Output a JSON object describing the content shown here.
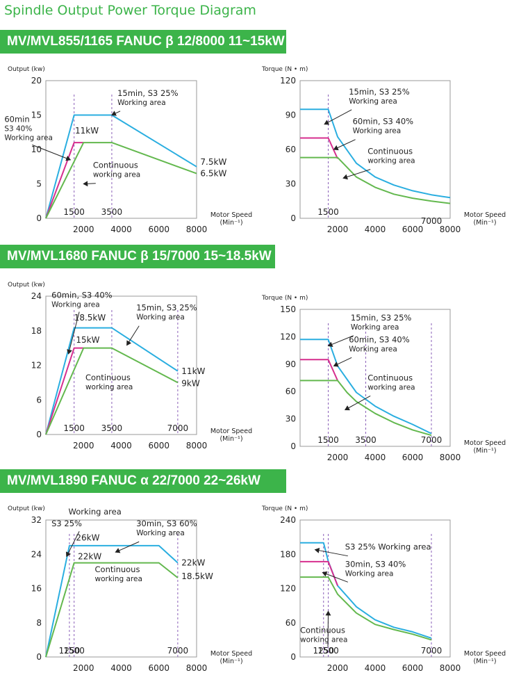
{
  "page_title": "Spindle Output Power Torque Diagram",
  "sections": [
    {
      "banner": "MV/MVL855/1165  FANUC β 12/8000  11~15kW"
    },
    {
      "banner": "MV/MVL1680  FANUC β 15/7000  15~18.5kW"
    },
    {
      "banner": "MV/MVL1890  FANUC α 22/7000  22~26kW"
    }
  ],
  "colors": {
    "s3_25": "#2aaee0",
    "s3_40": "#d62e8e",
    "continuous": "#63b84e",
    "marker": "#8a5fb8",
    "banner": "#3cb44a"
  },
  "chart_data": [
    {
      "type": "line",
      "kind": "output",
      "ylabel": "Output (kw)",
      "xlabel": "Motor Speed",
      "xunit": "(Min⁻¹)",
      "xlim": [
        0,
        8000
      ],
      "ylim": [
        0,
        20
      ],
      "xticks": [
        "2000",
        "4000",
        "6000",
        "8000"
      ],
      "yticks": [
        "0",
        "5",
        "10",
        "15",
        "20"
      ],
      "markers": [
        {
          "x": 1500,
          "label": "1500"
        },
        {
          "x": 3500,
          "label": "3500"
        }
      ],
      "series": [
        {
          "key": "s3_25",
          "x": [
            0,
            1500,
            3500,
            8000
          ],
          "y": [
            0,
            15,
            15,
            7.5
          ]
        },
        {
          "key": "s3_40",
          "x": [
            0,
            1500,
            2000
          ],
          "y": [
            0,
            11,
            11
          ]
        },
        {
          "key": "continuous",
          "x": [
            0,
            2000,
            3500,
            8000
          ],
          "y": [
            0,
            11,
            11,
            6.5
          ]
        }
      ],
      "annotations": [
        {
          "lines": [
            "15min, S3 25%",
            "Working area"
          ],
          "x": 3800,
          "y": 17.8,
          "arrow": [
            3500,
            15
          ]
        },
        {
          "lines": [
            "60min",
            "S3 40%",
            "Working area"
          ],
          "x": -2200,
          "y": 14,
          "arrow": [
            1300,
            8.5
          ]
        },
        {
          "lines": [
            "11kW"
          ],
          "x": 1550,
          "y": 12.3
        },
        {
          "lines": [
            "Continuous",
            "working area"
          ],
          "x": 2500,
          "y": 7.3,
          "arrow": [
            2000,
            5
          ]
        },
        {
          "lines": [
            "7.5kW"
          ],
          "x": 8200,
          "y": 7.8
        },
        {
          "lines": [
            "6.5kW"
          ],
          "x": 8200,
          "y": 6.1
        }
      ]
    },
    {
      "type": "line",
      "kind": "torque",
      "ylabel": "Torque (N • m)",
      "xlabel": "Motor Speed",
      "xunit": "(Min⁻¹)",
      "xlim": [
        0,
        8000
      ],
      "ylim": [
        0,
        120
      ],
      "xticks": [
        "2000",
        "4000",
        "6000",
        "8000"
      ],
      "yticks": [
        "0",
        "30",
        "60",
        "90",
        "120"
      ],
      "markers": [
        {
          "x": 1500,
          "label": "1500"
        }
      ],
      "extra_labels": [
        {
          "text": "7000",
          "x": 7000,
          "y": -6
        }
      ],
      "series": [
        {
          "key": "s3_25",
          "x": [
            0,
            1500,
            2000,
            3000,
            4000,
            5000,
            6000,
            7000,
            8000
          ],
          "y": [
            95,
            95,
            71,
            48,
            36,
            29,
            24,
            20.5,
            18
          ]
        },
        {
          "key": "s3_40",
          "x": [
            0,
            1500,
            2000
          ],
          "y": [
            70,
            70,
            52
          ]
        },
        {
          "key": "continuous",
          "x": [
            0,
            2000,
            3000,
            4000,
            5000,
            6000,
            7000,
            8000
          ],
          "y": [
            53,
            53,
            36,
            27,
            21,
            17.5,
            15,
            13
          ]
        }
      ],
      "annotations": [
        {
          "lines": [
            "15min, S3 25%",
            "Working area"
          ],
          "x": 2600,
          "y": 108,
          "arrow": [
            1300,
            82
          ]
        },
        {
          "lines": [
            "60min, S3 40%",
            "Working area"
          ],
          "x": 2800,
          "y": 82,
          "arrow": [
            1800,
            60
          ]
        },
        {
          "lines": [
            "Continuous",
            "working area"
          ],
          "x": 3600,
          "y": 56,
          "arrow": [
            2300,
            35
          ]
        }
      ]
    },
    {
      "type": "line",
      "kind": "output",
      "ylabel": "Output (kw)",
      "xlabel": "Motor Speed",
      "xunit": "(Min⁻¹)",
      "xlim": [
        0,
        8000
      ],
      "ylim": [
        0,
        24
      ],
      "xticks": [
        "2000",
        "4000",
        "6000",
        "8000"
      ],
      "yticks": [
        "0",
        "6",
        "12",
        "18",
        "24"
      ],
      "markers": [
        {
          "x": 1500,
          "label": "1500"
        },
        {
          "x": 3500,
          "label": "3500"
        },
        {
          "x": 7000,
          "label": "7000"
        }
      ],
      "series": [
        {
          "key": "s3_25",
          "x": [
            0,
            1500,
            3500,
            7000
          ],
          "y": [
            0,
            18.5,
            18.5,
            11
          ]
        },
        {
          "key": "s3_40",
          "x": [
            0,
            1500,
            2000
          ],
          "y": [
            0,
            15,
            15
          ]
        },
        {
          "key": "continuous",
          "x": [
            0,
            2000,
            3500,
            7000
          ],
          "y": [
            0,
            15,
            15,
            9
          ]
        }
      ],
      "annotations": [
        {
          "lines": [
            "60min, S3 40%",
            "Working area"
          ],
          "x": 300,
          "y": 23.7,
          "arrow": [
            1200,
            14
          ]
        },
        {
          "lines": [
            "18.5kW"
          ],
          "x": 1500,
          "y": 19.8
        },
        {
          "lines": [
            "15kW"
          ],
          "x": 1600,
          "y": 15.9
        },
        {
          "lines": [
            "15min, S3 25%",
            "Working area"
          ],
          "x": 4800,
          "y": 21.5,
          "arrow": [
            4300,
            15.5
          ]
        },
        {
          "lines": [
            "Continuous",
            "working area"
          ],
          "x": 2100,
          "y": 9.4
        },
        {
          "lines": [
            "11kW"
          ],
          "x": 7200,
          "y": 10.5
        },
        {
          "lines": [
            "9kW"
          ],
          "x": 7200,
          "y": 8.4
        }
      ]
    },
    {
      "type": "line",
      "kind": "torque",
      "ylabel": "Torque (N • m)",
      "xlabel": "Motor Speed",
      "xunit": "(Min⁻¹)",
      "xlim": [
        0,
        8000
      ],
      "ylim": [
        0,
        150
      ],
      "xticks": [
        "2000",
        "4000",
        "6000",
        "8000"
      ],
      "yticks": [
        "0",
        "30",
        "60",
        "90",
        "120",
        "150"
      ],
      "markers": [
        {
          "x": 1500,
          "label": "1500"
        },
        {
          "x": 3500,
          "label": "3500"
        },
        {
          "x": 7000,
          "label": "7000"
        }
      ],
      "series": [
        {
          "key": "s3_25",
          "x": [
            0,
            1500,
            2000,
            3000,
            4000,
            5000,
            6000,
            7000
          ],
          "y": [
            117,
            117,
            88,
            59,
            44,
            33,
            24,
            14
          ]
        },
        {
          "key": "s3_40",
          "x": [
            0,
            1500,
            2000
          ],
          "y": [
            95,
            95,
            72
          ]
        },
        {
          "key": "continuous",
          "x": [
            0,
            2000,
            2500,
            3000,
            4000,
            5000,
            6000,
            7000
          ],
          "y": [
            72,
            72,
            59,
            49,
            36,
            26,
            18,
            12
          ]
        }
      ],
      "annotations": [
        {
          "lines": [
            "15min, S3 25%",
            "Working area"
          ],
          "x": 2700,
          "y": 138,
          "arrow": [
            1500,
            110
          ]
        },
        {
          "lines": [
            "60min, S3 40%",
            "Working area"
          ],
          "x": 2600,
          "y": 114,
          "arrow": [
            1800,
            88
          ]
        },
        {
          "lines": [
            "Continuous",
            "working area"
          ],
          "x": 3600,
          "y": 72,
          "arrow": [
            2400,
            40
          ]
        }
      ]
    },
    {
      "type": "line",
      "kind": "output",
      "ylabel": "Output (kw)",
      "xlabel": "Motor Speed",
      "xunit": "(Min⁻¹)",
      "xlim": [
        0,
        8000
      ],
      "ylim": [
        0,
        32
      ],
      "xticks": [
        "2000",
        "4000",
        "6000",
        "8000"
      ],
      "yticks": [
        "0",
        "8",
        "16",
        "24",
        "32"
      ],
      "markers": [
        {
          "x": 1250,
          "label": "1250"
        },
        {
          "x": 1500,
          "label": "1500"
        },
        {
          "x": 7000,
          "label": "7000"
        }
      ],
      "series": [
        {
          "key": "s3_25",
          "x": [
            0,
            1250,
            6000,
            7000
          ],
          "y": [
            0,
            26,
            26,
            22
          ]
        },
        {
          "key": "continuous",
          "x": [
            0,
            1500,
            6000,
            7000
          ],
          "y": [
            0,
            22,
            22,
            18.5
          ]
        }
      ],
      "annotations": [
        {
          "lines": [
            "Working area"
          ],
          "x": 1200,
          "y": 33.3
        },
        {
          "lines": [
            "S3 25%"
          ],
          "x": 300,
          "y": 30.5,
          "arrow": [
            1100,
            23.5
          ]
        },
        {
          "lines": [
            "26kW"
          ],
          "x": 1600,
          "y": 27.2
        },
        {
          "lines": [
            "22kW"
          ],
          "x": 1700,
          "y": 22.8
        },
        {
          "lines": [
            "30min, S3 60%",
            "Working area"
          ],
          "x": 4800,
          "y": 30.5,
          "arrow": [
            3700,
            24.5
          ]
        },
        {
          "lines": [
            "Continuous",
            "working area"
          ],
          "x": 2600,
          "y": 19.8
        },
        {
          "lines": [
            "22kW"
          ],
          "x": 7200,
          "y": 21.4
        },
        {
          "lines": [
            "18.5kW"
          ],
          "x": 7200,
          "y": 18.2
        }
      ]
    },
    {
      "type": "line",
      "kind": "torque",
      "ylabel": "Torque (N • m)",
      "xlabel": "Motor Speed",
      "xunit": "(Min⁻¹)",
      "xlim": [
        0,
        8000
      ],
      "ylim": [
        0,
        240
      ],
      "xticks": [
        "2000",
        "4000",
        "6000",
        "8000"
      ],
      "yticks": [
        "0",
        "60",
        "120",
        "180",
        "240"
      ],
      "markers": [
        {
          "x": 1250,
          "label": "1250"
        },
        {
          "x": 1500,
          "label": "1500"
        },
        {
          "x": 7000,
          "label": "7000"
        }
      ],
      "series": [
        {
          "key": "s3_25",
          "x": [
            0,
            1250,
            1500,
            2000,
            3000,
            4000,
            5000,
            6000,
            7000
          ],
          "y": [
            200,
            200,
            168,
            125,
            88,
            65,
            52,
            44,
            33
          ]
        },
        {
          "key": "s3_40",
          "x": [
            0,
            1500,
            2000
          ],
          "y": [
            167,
            167,
            125
          ]
        },
        {
          "key": "continuous",
          "x": [
            0,
            1500,
            2000,
            3000,
            4000,
            5000,
            6000,
            7000
          ],
          "y": [
            140,
            140,
            110,
            77,
            57,
            48,
            40,
            30
          ]
        }
      ],
      "annotations": [
        {
          "lines": [
            "S3 25% Working area"
          ],
          "x": 2400,
          "y": 188,
          "arrow": [
            800,
            188
          ]
        },
        {
          "lines": [
            "30min, S3 40%",
            "Working area"
          ],
          "x": 2400,
          "y": 158,
          "arrow": [
            1200,
            148
          ]
        },
        {
          "lines": [
            "Continuous",
            "working area"
          ],
          "x": 0,
          "y": 42,
          "arrow": [
            1500,
            80
          ]
        }
      ]
    }
  ]
}
